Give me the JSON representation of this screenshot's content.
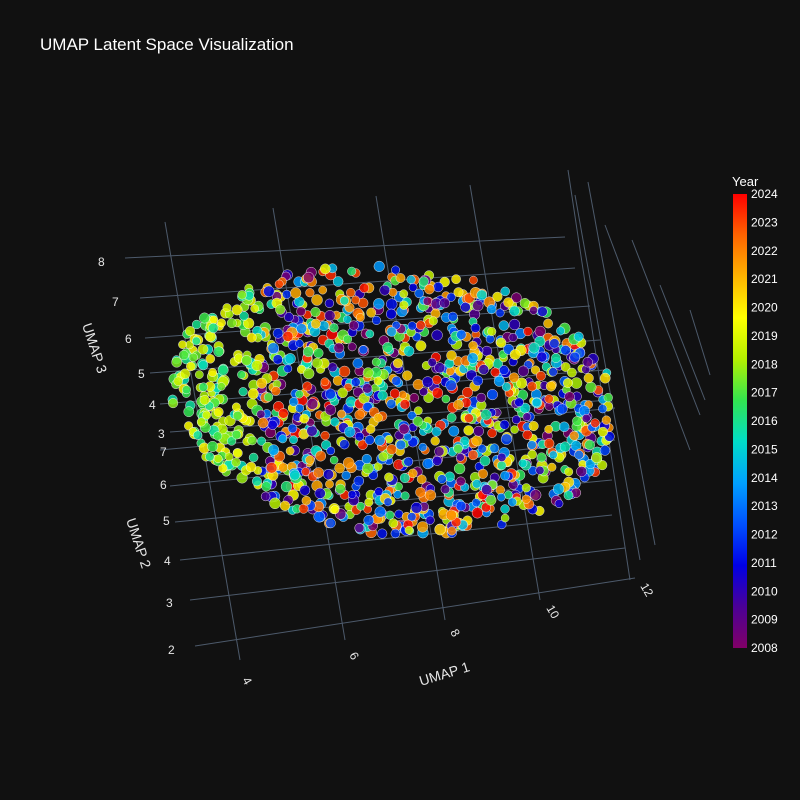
{
  "chart_data": {
    "type": "scatter",
    "title": "UMAP Latent Space Visualization",
    "axes": {
      "x": {
        "label": "UMAP 1",
        "ticks": [
          "4",
          "6",
          "8",
          "10",
          "12"
        ]
      },
      "y": {
        "label": "UMAP 2",
        "ticks": [
          "2",
          "3",
          "4",
          "5",
          "6",
          "7"
        ]
      },
      "z": {
        "label": "UMAP 3",
        "ticks": [
          "3",
          "4",
          "5",
          "6",
          "7",
          "8"
        ]
      }
    },
    "xlim": [
      3.5,
      12.5
    ],
    "ylim": [
      1.8,
      7.4
    ],
    "zlim": [
      2.8,
      8.2
    ],
    "colorbar": {
      "title": "Year",
      "ticks": [
        "2024",
        "2023",
        "2022",
        "2021",
        "2020",
        "2019",
        "2018",
        "2017",
        "2016",
        "2015",
        "2014",
        "2013",
        "2012",
        "2011",
        "2010",
        "2009",
        "2008"
      ],
      "range": [
        2008,
        2024
      ],
      "colorscale": [
        "#800066",
        "#4b0096",
        "#0000e6",
        "#0050ff",
        "#00a0ff",
        "#00dcc8",
        "#32e650",
        "#b4f000",
        "#ffff00",
        "#ffb400",
        "#ff6400",
        "#ff0000"
      ]
    },
    "grid": true,
    "legend_position": "right",
    "marker_outline": "#ffffff"
  }
}
